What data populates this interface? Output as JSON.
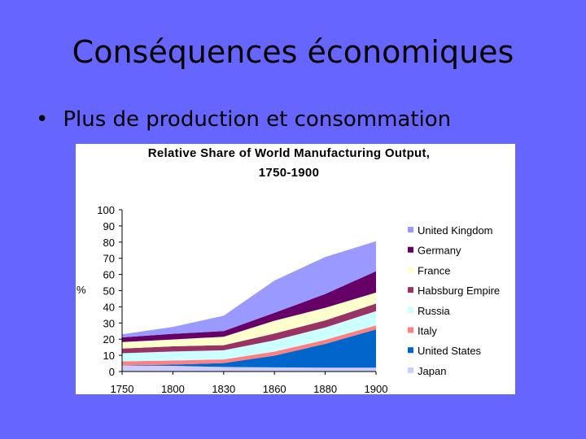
{
  "slide": {
    "title": "Conséquences économiques",
    "bullet_symbol": "•",
    "bullet_text": "Plus de production et consommation"
  },
  "chart_data": {
    "type": "area",
    "stacked": true,
    "title_line1": "Relative Share of World Manufacturing Output,",
    "title_line2": "1750-1900",
    "ylabel": "%",
    "xlabel": "",
    "ylim": [
      0,
      100
    ],
    "yticks": [
      0,
      10,
      20,
      30,
      40,
      50,
      60,
      70,
      80,
      90,
      100
    ],
    "categories": [
      "1750",
      "1800",
      "1830",
      "1860",
      "1880",
      "1900"
    ],
    "legend_position": "right",
    "series": [
      {
        "name": "Japan",
        "color": "#ccccff",
        "values": [
          3.8,
          3.5,
          2.8,
          2.6,
          2.4,
          2.4
        ]
      },
      {
        "name": "United States",
        "color": "#0066cc",
        "values": [
          0.1,
          0.8,
          2.4,
          7.2,
          14.7,
          23.6
        ]
      },
      {
        "name": "Italy",
        "color": "#ff8080",
        "values": [
          2.4,
          2.5,
          2.3,
          2.5,
          2.5,
          2.5
        ]
      },
      {
        "name": "Russia",
        "color": "#ccffff",
        "values": [
          5.0,
          5.6,
          5.6,
          7.0,
          7.6,
          8.8
        ]
      },
      {
        "name": "Habsburg Empire",
        "color": "#993366",
        "values": [
          2.9,
          3.2,
          3.2,
          4.2,
          4.4,
          4.7
        ]
      },
      {
        "name": "France",
        "color": "#ffffcc",
        "values": [
          4.0,
          4.2,
          5.2,
          7.9,
          7.8,
          6.8
        ]
      },
      {
        "name": "Germany",
        "color": "#660066",
        "values": [
          2.9,
          3.5,
          3.5,
          4.9,
          8.5,
          13.2
        ]
      },
      {
        "name": "United Kingdom",
        "color": "#9999ff",
        "values": [
          1.9,
          4.3,
          9.5,
          19.9,
          22.9,
          18.5
        ]
      }
    ]
  }
}
